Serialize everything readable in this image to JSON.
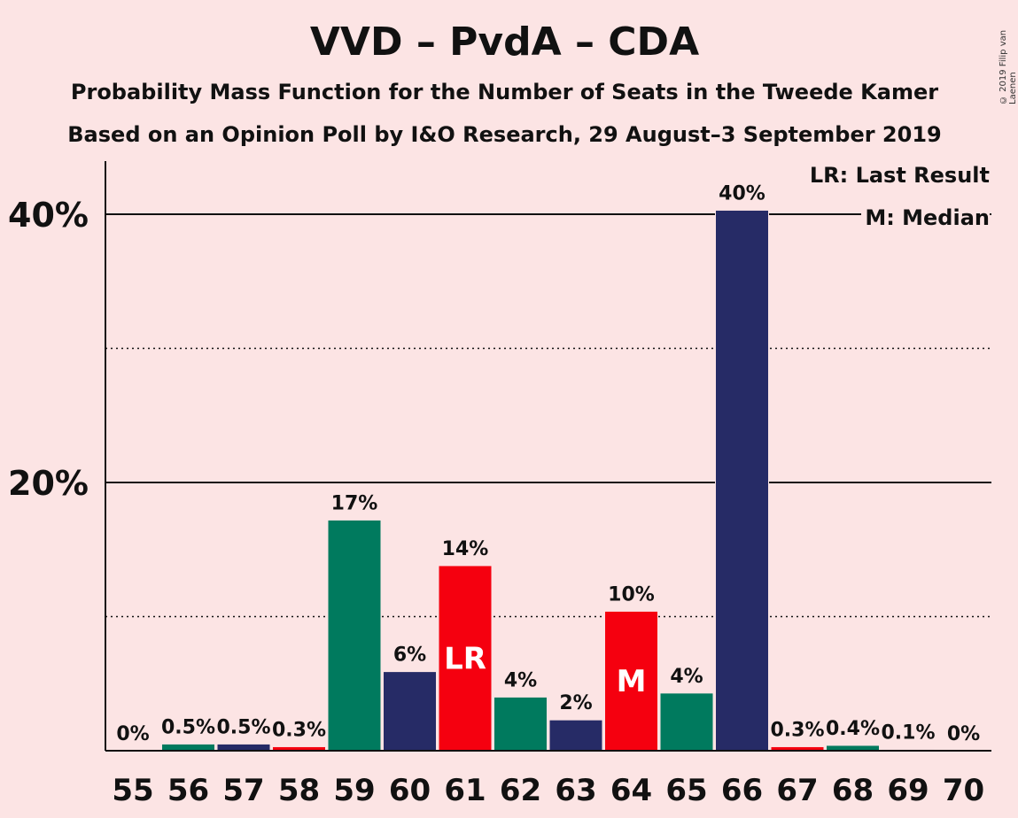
{
  "header": {
    "title": "VVD – PvdA – CDA",
    "subtitle": "Probability Mass Function for the Number of Seats in the Tweede Kamer",
    "subtitle2": "Based on an Opinion Poll by I&O Research, 29 August–3 September 2019",
    "copyright": "© 2019 Filip van Laenen"
  },
  "legend": {
    "lr": "LR: Last Result",
    "median": "M: Median"
  },
  "colors": {
    "background": "#fce4e4",
    "green": "#007a5e",
    "navy": "#262b66",
    "red": "#f5000f",
    "text": "#111111"
  },
  "chart_data": {
    "type": "bar",
    "categories": [
      "55",
      "56",
      "57",
      "58",
      "59",
      "60",
      "61",
      "62",
      "63",
      "64",
      "65",
      "66",
      "67",
      "68",
      "69",
      "70"
    ],
    "values": [
      0,
      0.5,
      0.5,
      0.3,
      17.2,
      5.9,
      13.8,
      4.0,
      2.3,
      10.4,
      4.3,
      40.3,
      0.3,
      0.4,
      0.1,
      0
    ],
    "labels": [
      "0%",
      "0.5%",
      "0.5%",
      "0.3%",
      "17%",
      "6%",
      "14%",
      "4%",
      "2%",
      "10%",
      "4%",
      "40%",
      "0.3%",
      "0.4%",
      "0.1%",
      "0%"
    ],
    "bar_colors": [
      "green",
      "green",
      "navy",
      "red",
      "green",
      "navy",
      "red",
      "green",
      "navy",
      "red",
      "green",
      "navy",
      "red",
      "green",
      "navy",
      "red"
    ],
    "markers": {
      "61": "LR",
      "64": "M"
    },
    "yticks": [
      20,
      40
    ],
    "ytick_labels": [
      "20%",
      "40%"
    ],
    "ylim": [
      0,
      44
    ],
    "grid": {
      "solid": [
        20,
        40
      ],
      "dotted": [
        10,
        30
      ]
    }
  }
}
